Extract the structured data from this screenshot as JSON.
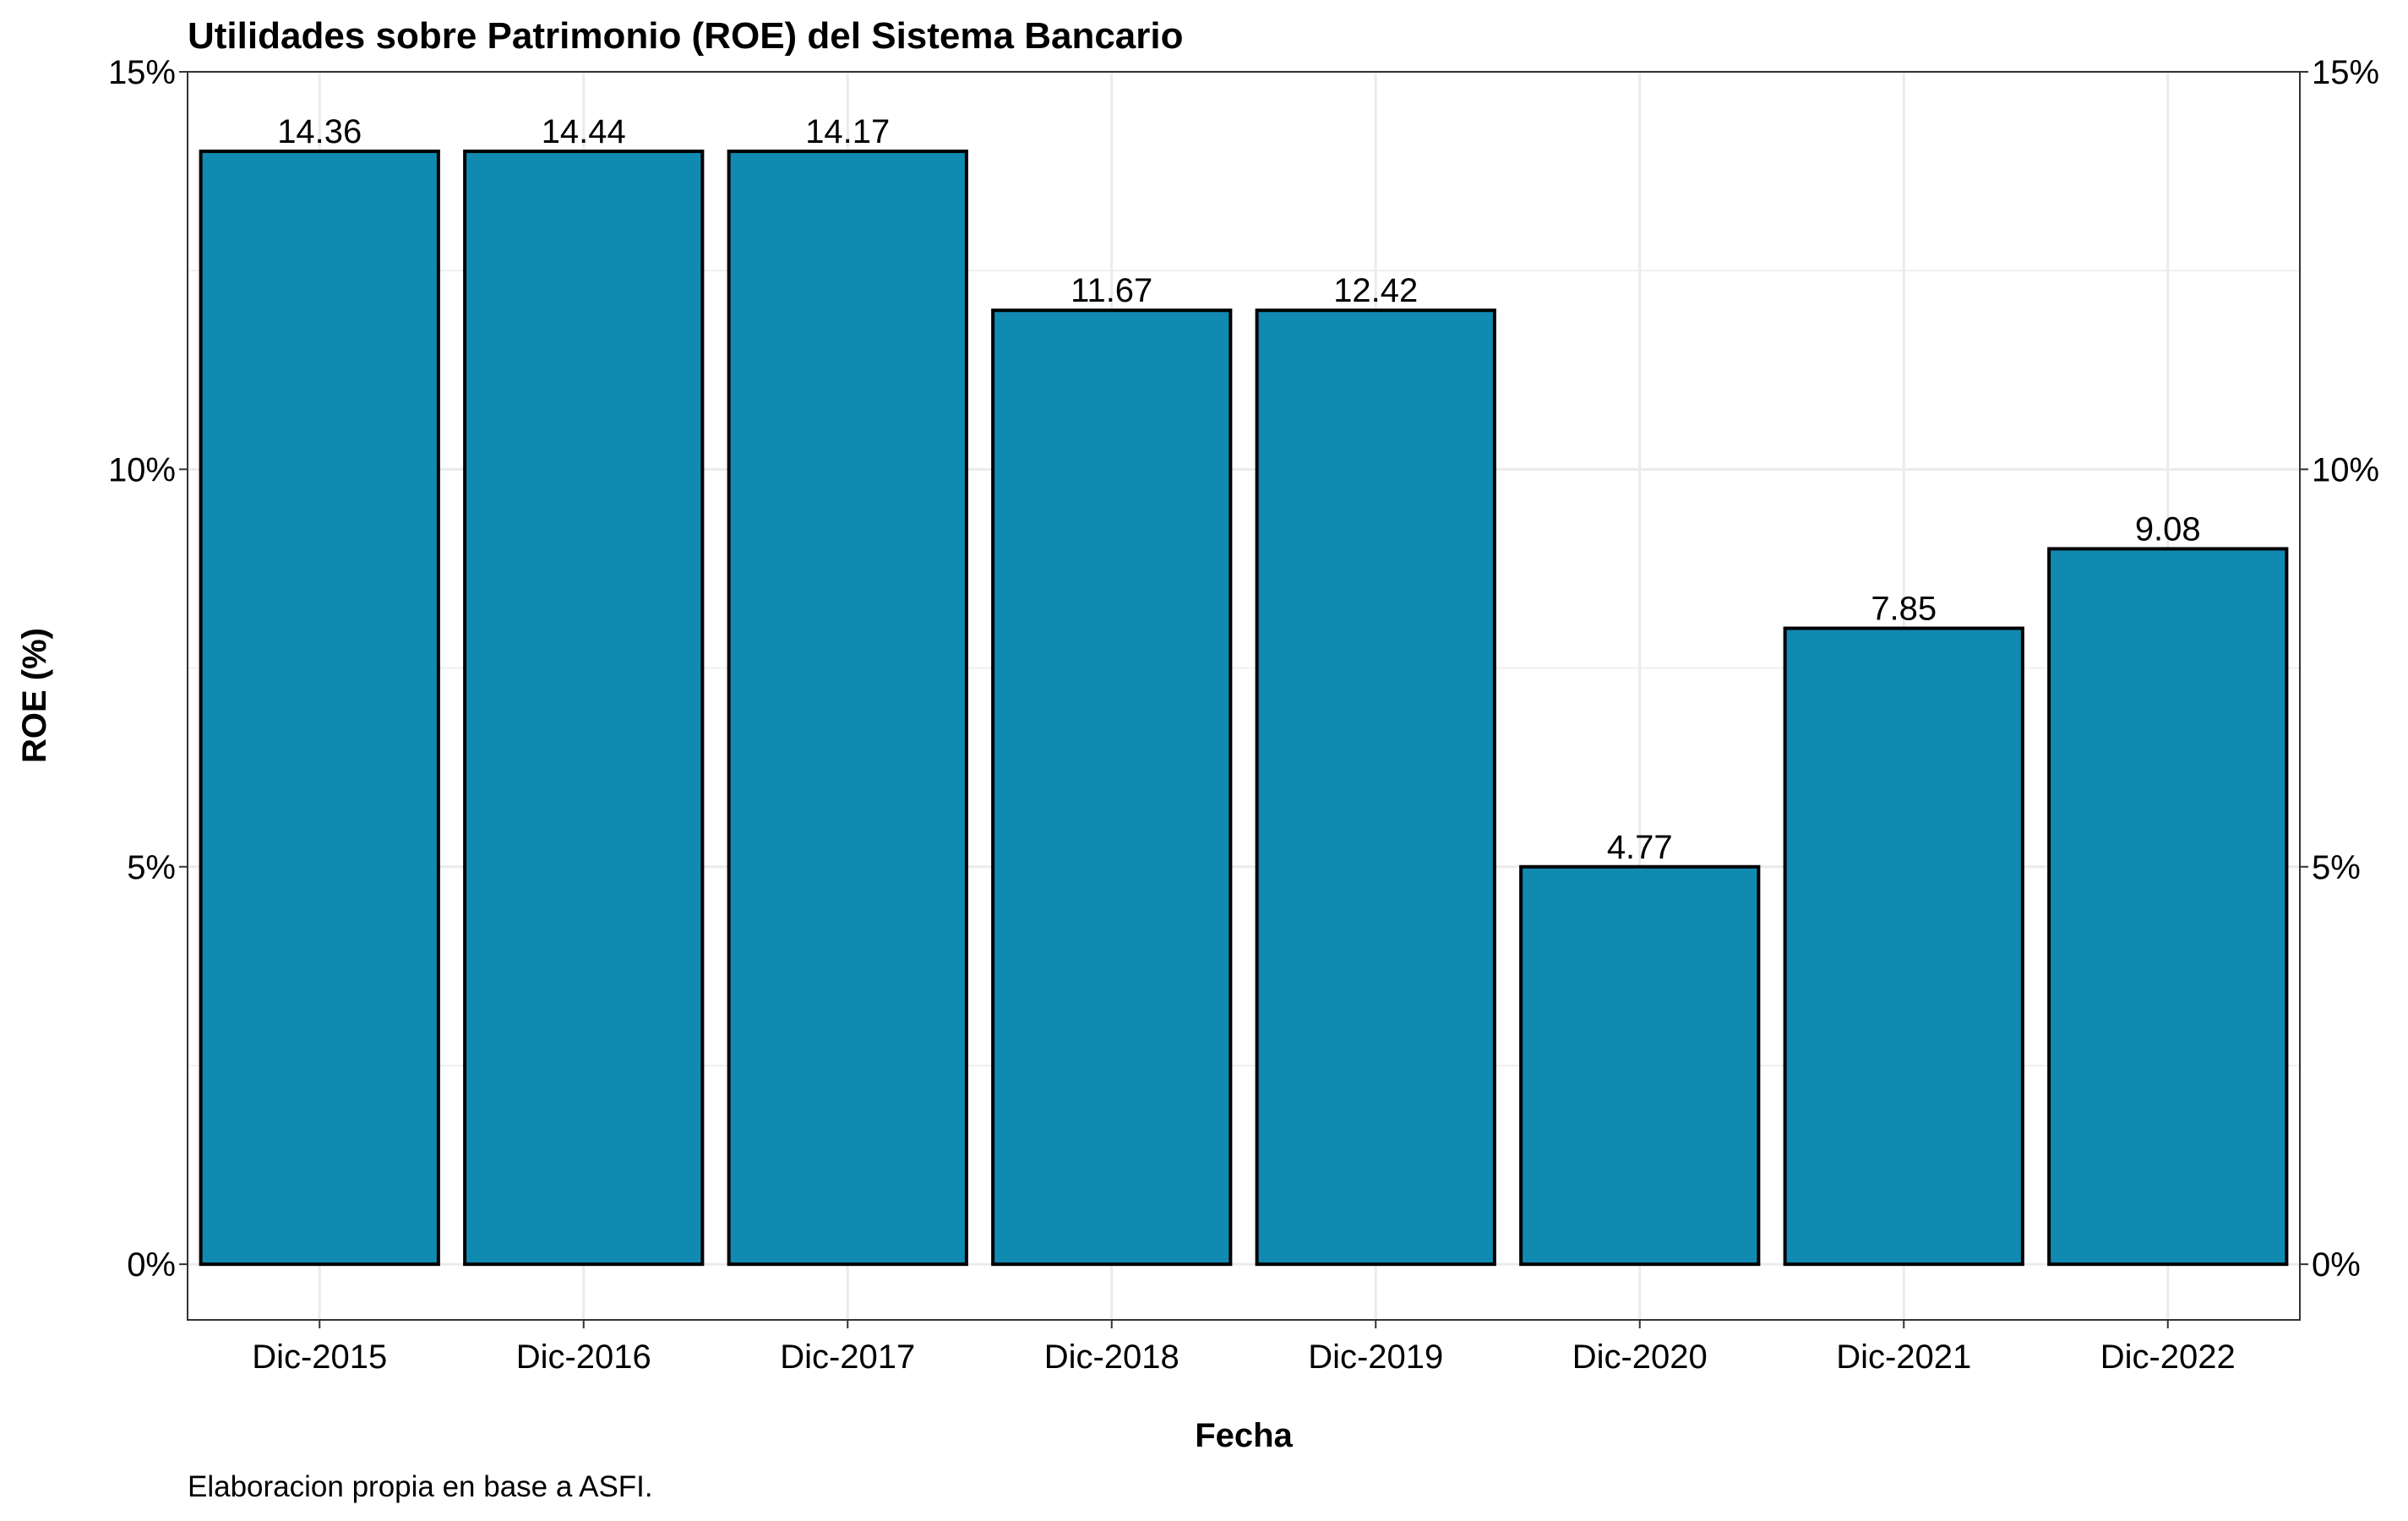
{
  "chart_data": {
    "type": "bar",
    "title": "Utilidades sobre Patrimonio (ROE) del Sistema Bancario",
    "xlabel": "Fecha",
    "ylabel": "ROE (%)",
    "caption": "Elaboracion propia en base a ASFI.",
    "categories": [
      "Dic-2015",
      "Dic-2016",
      "Dic-2017",
      "Dic-2018",
      "Dic-2019",
      "Dic-2020",
      "Dic-2021",
      "Dic-2022"
    ],
    "values": [
      14,
      14,
      14,
      12,
      12,
      5,
      8,
      9
    ],
    "data_labels": [
      "14.36",
      "14.44",
      "14.17",
      "11.67",
      "12.42",
      "4.77",
      "7.85",
      "9.08"
    ],
    "y_ticks": [
      0,
      5,
      10,
      15
    ],
    "y_tick_labels": [
      "0%",
      "5%",
      "10%",
      "15%"
    ],
    "ylim": [
      -0.7,
      15.0
    ],
    "grid": true,
    "secondary_y_axis": true,
    "colors": {
      "bar_fill": "#118AB2",
      "bar_outline": "#000000",
      "grid": "#EBEBEB",
      "panel_border": "#333333"
    }
  }
}
